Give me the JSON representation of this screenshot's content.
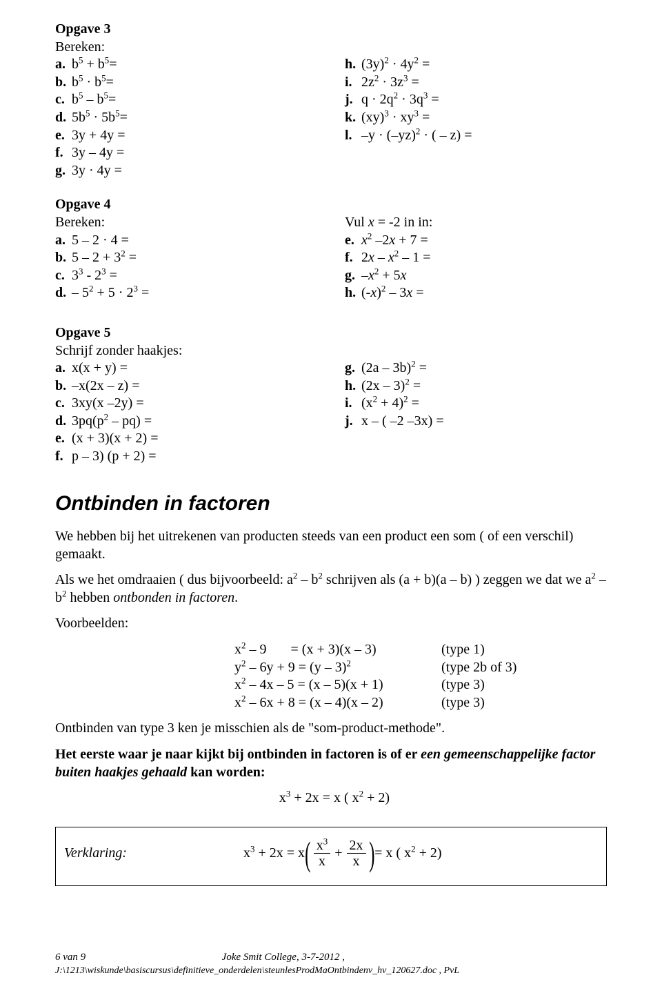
{
  "opgave3": {
    "title": "Opgave 3",
    "sub": "Bereken:",
    "left": [
      {
        "l": "a.",
        "t": "b<sup>5</sup> + b<sup>5</sup>="
      },
      {
        "l": "b.",
        "t": "b<sup>5</sup> · b<sup>5</sup>="
      },
      {
        "l": "c.",
        "t": "b<sup>5</sup> – b<sup>5</sup>="
      },
      {
        "l": "d.",
        "t": "5b<sup>5</sup> · 5b<sup>5</sup>="
      },
      {
        "l": "e.",
        "t": "3y + 4y ="
      },
      {
        "l": "f.",
        "t": "3y – 4y ="
      },
      {
        "l": "g.",
        "t": "3y · 4y ="
      }
    ],
    "right": [
      {
        "l": "h.",
        "t": "(3y)<sup>2</sup> · 4y<sup>2</sup> ="
      },
      {
        "l": "i.",
        "t": "2z<sup>2</sup> · 3z<sup>3</sup> ="
      },
      {
        "l": "j.",
        "t": "q · 2q<sup>2</sup> · 3q<sup>3</sup> ="
      },
      {
        "l": "k.",
        "t": "(xy)<sup>3</sup> · xy<sup>3</sup> ="
      },
      {
        "l": "l.",
        "t": "–y · (–yz)<sup>2</sup> · ( – z) ="
      }
    ]
  },
  "opgave4": {
    "title": "Opgave 4",
    "sub": "Bereken:",
    "left": [
      {
        "l": "a.",
        "t": "5 – 2 · 4 ="
      },
      {
        "l": "b.",
        "t": "5 – 2 + 3<sup>2</sup> ="
      },
      {
        "l": "c.",
        "t": "3<sup>3</sup> - 2<sup>3</sup> ="
      },
      {
        "l": "d.",
        "t": "– 5<sup>2</sup> + 5 · 2<sup>3</sup> ="
      }
    ],
    "right_head": "Vul  <span class=\"italic\">x</span> = -2 in in:",
    "right": [
      {
        "l": "e.",
        "t": "<span class=\"italic\">x</span><sup>2</sup> –2<span class=\"italic\">x</span> + 7 ="
      },
      {
        "l": "f.",
        "t": "2<span class=\"italic\">x</span> – <span class=\"italic\">x</span><sup>2</sup> – 1 ="
      },
      {
        "l": "g.",
        "t": "–<span class=\"italic\">x</span><sup>2</sup> + 5<span class=\"italic\">x</span>"
      },
      {
        "l": "h.",
        "t": "(-<span class=\"italic\">x</span>)<sup>2</sup> – 3<span class=\"italic\">x</span> ="
      }
    ]
  },
  "opgave5": {
    "title": "Opgave 5",
    "sub": "Schrijf zonder haakjes:",
    "left": [
      {
        "l": "a.",
        "t": "x(x + y) ="
      },
      {
        "l": "b.",
        "t": "–x(2x – z) ="
      },
      {
        "l": "c.",
        "t": "3xy(x –2y) ="
      },
      {
        "l": "d.",
        "t": "3pq(p<sup>2</sup> – pq) ="
      },
      {
        "l": "e.",
        "t": "(x + 3)(x + 2) ="
      },
      {
        "l": "f.",
        "t": "p – 3) (p + 2) ="
      }
    ],
    "right": [
      {
        "l": "g.",
        "t": "(2a – 3b)<sup>2</sup> ="
      },
      {
        "l": "h.",
        "t": "(2x – 3)<sup>2</sup> ="
      },
      {
        "l": "i.",
        "t": "(x<sup>2</sup> + 4)<sup>2</sup> ="
      },
      {
        "l": "j.",
        "t": "x – ( –2 –3x) ="
      }
    ]
  },
  "heading2": "Ontbinden in factoren",
  "para1": "We hebben bij het uitrekenen van producten steeds van een product een som ( of een verschil) gemaakt.",
  "para2": "Als we het omdraaien ( dus bijvoorbeeld:  a<sup>2</sup> – b<sup>2</sup>  schrijven als (a + b)(a – b) ) zeggen we dat we a<sup>2</sup> – b<sup>2</sup>   hebben  <span class=\"italic\">ontbonden in factoren</span>.",
  "voorbeelden_label": "Voorbeelden:",
  "examples": [
    {
      "eq": "x<sup>2</sup> – 9&nbsp;&nbsp;&nbsp;&nbsp;&nbsp;&nbsp;&nbsp;= (x + 3)(x – 3)",
      "type": "(type 1)"
    },
    {
      "eq": "y<sup>2</sup> – 6y + 9 = (y – 3)<sup>2</sup>",
      "type": "(type 2b of 3)"
    },
    {
      "eq": "x<sup>2</sup> – 4x – 5 = (x – 5)(x + 1)",
      "type": "(type 3)"
    },
    {
      "eq": "x<sup>2</sup> – 6x + 8 = (x – 4)(x – 2)",
      "type": "(type 3)"
    }
  ],
  "para3": "Ontbinden van type 3 ken je misschien als de \"som-product-methode\".",
  "para4": "Het eerste waar je naar kijkt bij ontbinden in factoren is of er <span class=\"italic\">een gemeenschappelijke factor buiten haakjes gehaald</span> kan worden:",
  "center_eq": "x<sup>3</sup> + 2x = x ( x<sup>2</sup>  + 2)",
  "verklaring_label": "Verklaring:",
  "verk_lhs": "x<sup>3</sup> + 2x = x ",
  "verk_f1_num": "x<sup>3</sup>",
  "verk_f1_den": "x",
  "verk_f2_num": "2x",
  "verk_f2_den": "x",
  "verk_rhs": " = x ( x<sup>2</sup>  + 2)",
  "footer_left": "6 van 9",
  "footer_right": "Joke Smit College, 3-7-2012 ,",
  "footer_path": "J:\\1213\\wiskunde\\basiscursus\\definitieve_onderdelen\\steunlesProdMaOntbindenv_hv_120627.doc , PvL"
}
